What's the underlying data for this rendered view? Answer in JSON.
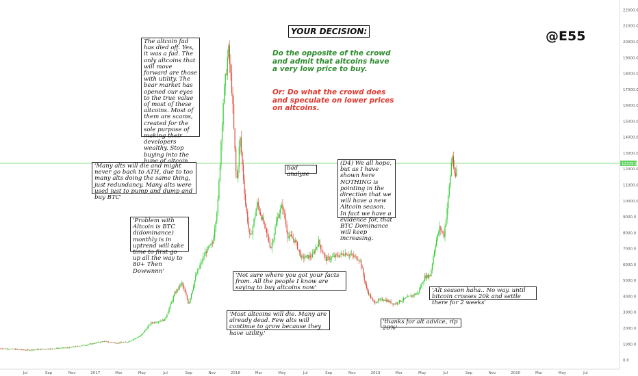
{
  "header": {
    "decision": "YOUR DECISION:",
    "handle": "@E55"
  },
  "options": {
    "green": "Do the opposite of the crowd and admit that altcoins have a very low price to buy.",
    "red": "Or: Do what the crowd does and speculate on lower prices on altcoins."
  },
  "notes": {
    "fad": "The altcoin fad has died off. Yes, it was a fad. The only altcoins that will move forward are those with utility. The bear market has opened our eyes to the true value of most of these altcoins. Most of them are scams, created for the sole purpose of making their developers wealthy. Stop buying into the hype of altcoin shills on Youtube.",
    "many_alts": "'Many alts will die and might never go back to ATH, due to too many alts doing the same thing, just redundancy. Many alts were used just to pump and dump and buy BTC'",
    "problem": "'Problem with Altcoin is BTC d(dominance) monthly is in uptrend will take time to first go up all the way to 80+ Then Dowwnnn'",
    "bad": "bad analyse",
    "d4": "(D4) We all hope, but as I have shown here NOTHING is pointing in the direction that we will have a new Altcoin season. In fact we have a evidence for, that BTC Dominance will keep increasing.",
    "not_sure": "'Not sure where you got your facts from. All the people I know are saying to buy altcoins now'",
    "most_die": "'Most altcoins will die. Many are already dead. Few alts will continue to grow because they have utility.'",
    "rip": "'thanks for alt advice, rip 20%'",
    "season": "'Alt season haha.. No way. until bitcoin crosses 20k and settle there for 2 weeks'"
  },
  "colors": {
    "up": "#26c926",
    "down": "#e04a3a",
    "hline": "#5fd35f",
    "price_tag": "#5fd35f"
  },
  "chart_data": {
    "type": "candlestick",
    "y_ticks": [
      0,
      1000,
      2000,
      3000,
      4000,
      5000,
      6000,
      7000,
      8000,
      9000,
      10000,
      11000,
      12000,
      13000,
      14000,
      15000,
      16000,
      17000,
      18000,
      19000,
      20000,
      21000,
      22000
    ],
    "y_tick_labels": [
      "0.0",
      "1000.0",
      "2000.0",
      "3000.0",
      "4000.0",
      "5000.0",
      "6000.0",
      "7000.0",
      "8000.0",
      "9000.0",
      "10000.0",
      "11000.0",
      "12000.0",
      "13000.0",
      "14000.0",
      "15000.0",
      "16000.0",
      "17000.0",
      "18000.0",
      "19000.0",
      "20000.0",
      "21000.0",
      "22000.0"
    ],
    "x_labels": [
      "Jul",
      "Sep",
      "Nov",
      "2017",
      "Mar",
      "May",
      "Jul",
      "Sep",
      "Nov",
      "2018",
      "Mar",
      "May",
      "Jul",
      "Sep",
      "Nov",
      "2019",
      "Mar",
      "May",
      "Jul",
      "Sep",
      "Nov",
      "2020",
      "Mar",
      "May",
      "Jul"
    ],
    "ylim": [
      -600,
      22600
    ],
    "current_price": "12339.0",
    "current_price_value": 12339,
    "price_path": [
      [
        0,
        700
      ],
      [
        40,
        600
      ],
      [
        100,
        750
      ],
      [
        130,
        960
      ],
      [
        150,
        1150
      ],
      [
        170,
        1050
      ],
      [
        185,
        1100
      ],
      [
        205,
        1500
      ],
      [
        220,
        2300
      ],
      [
        240,
        2500
      ],
      [
        255,
        4200
      ],
      [
        265,
        4800
      ],
      [
        275,
        3500
      ],
      [
        285,
        5200
      ],
      [
        300,
        6800
      ],
      [
        310,
        7300
      ],
      [
        318,
        10000
      ],
      [
        325,
        16000
      ],
      [
        333,
        19500
      ],
      [
        338,
        17000
      ],
      [
        345,
        11000
      ],
      [
        350,
        14000
      ],
      [
        358,
        9800
      ],
      [
        365,
        7500
      ],
      [
        375,
        9800
      ],
      [
        385,
        8500
      ],
      [
        395,
        7000
      ],
      [
        405,
        9000
      ],
      [
        412,
        9700
      ],
      [
        420,
        7800
      ],
      [
        430,
        7500
      ],
      [
        440,
        6400
      ],
      [
        455,
        6500
      ],
      [
        465,
        7400
      ],
      [
        475,
        6300
      ],
      [
        490,
        6500
      ],
      [
        505,
        6700
      ],
      [
        525,
        6300
      ],
      [
        535,
        4400
      ],
      [
        545,
        3600
      ],
      [
        560,
        3800
      ],
      [
        575,
        3500
      ],
      [
        590,
        3800
      ],
      [
        600,
        4000
      ],
      [
        610,
        4200
      ],
      [
        620,
        5200
      ],
      [
        628,
        5300
      ],
      [
        635,
        7200
      ],
      [
        642,
        8300
      ],
      [
        648,
        7800
      ],
      [
        655,
        10500
      ],
      [
        660,
        13000
      ],
      [
        664,
        11200
      ],
      [
        668,
        12400
      ]
    ]
  }
}
